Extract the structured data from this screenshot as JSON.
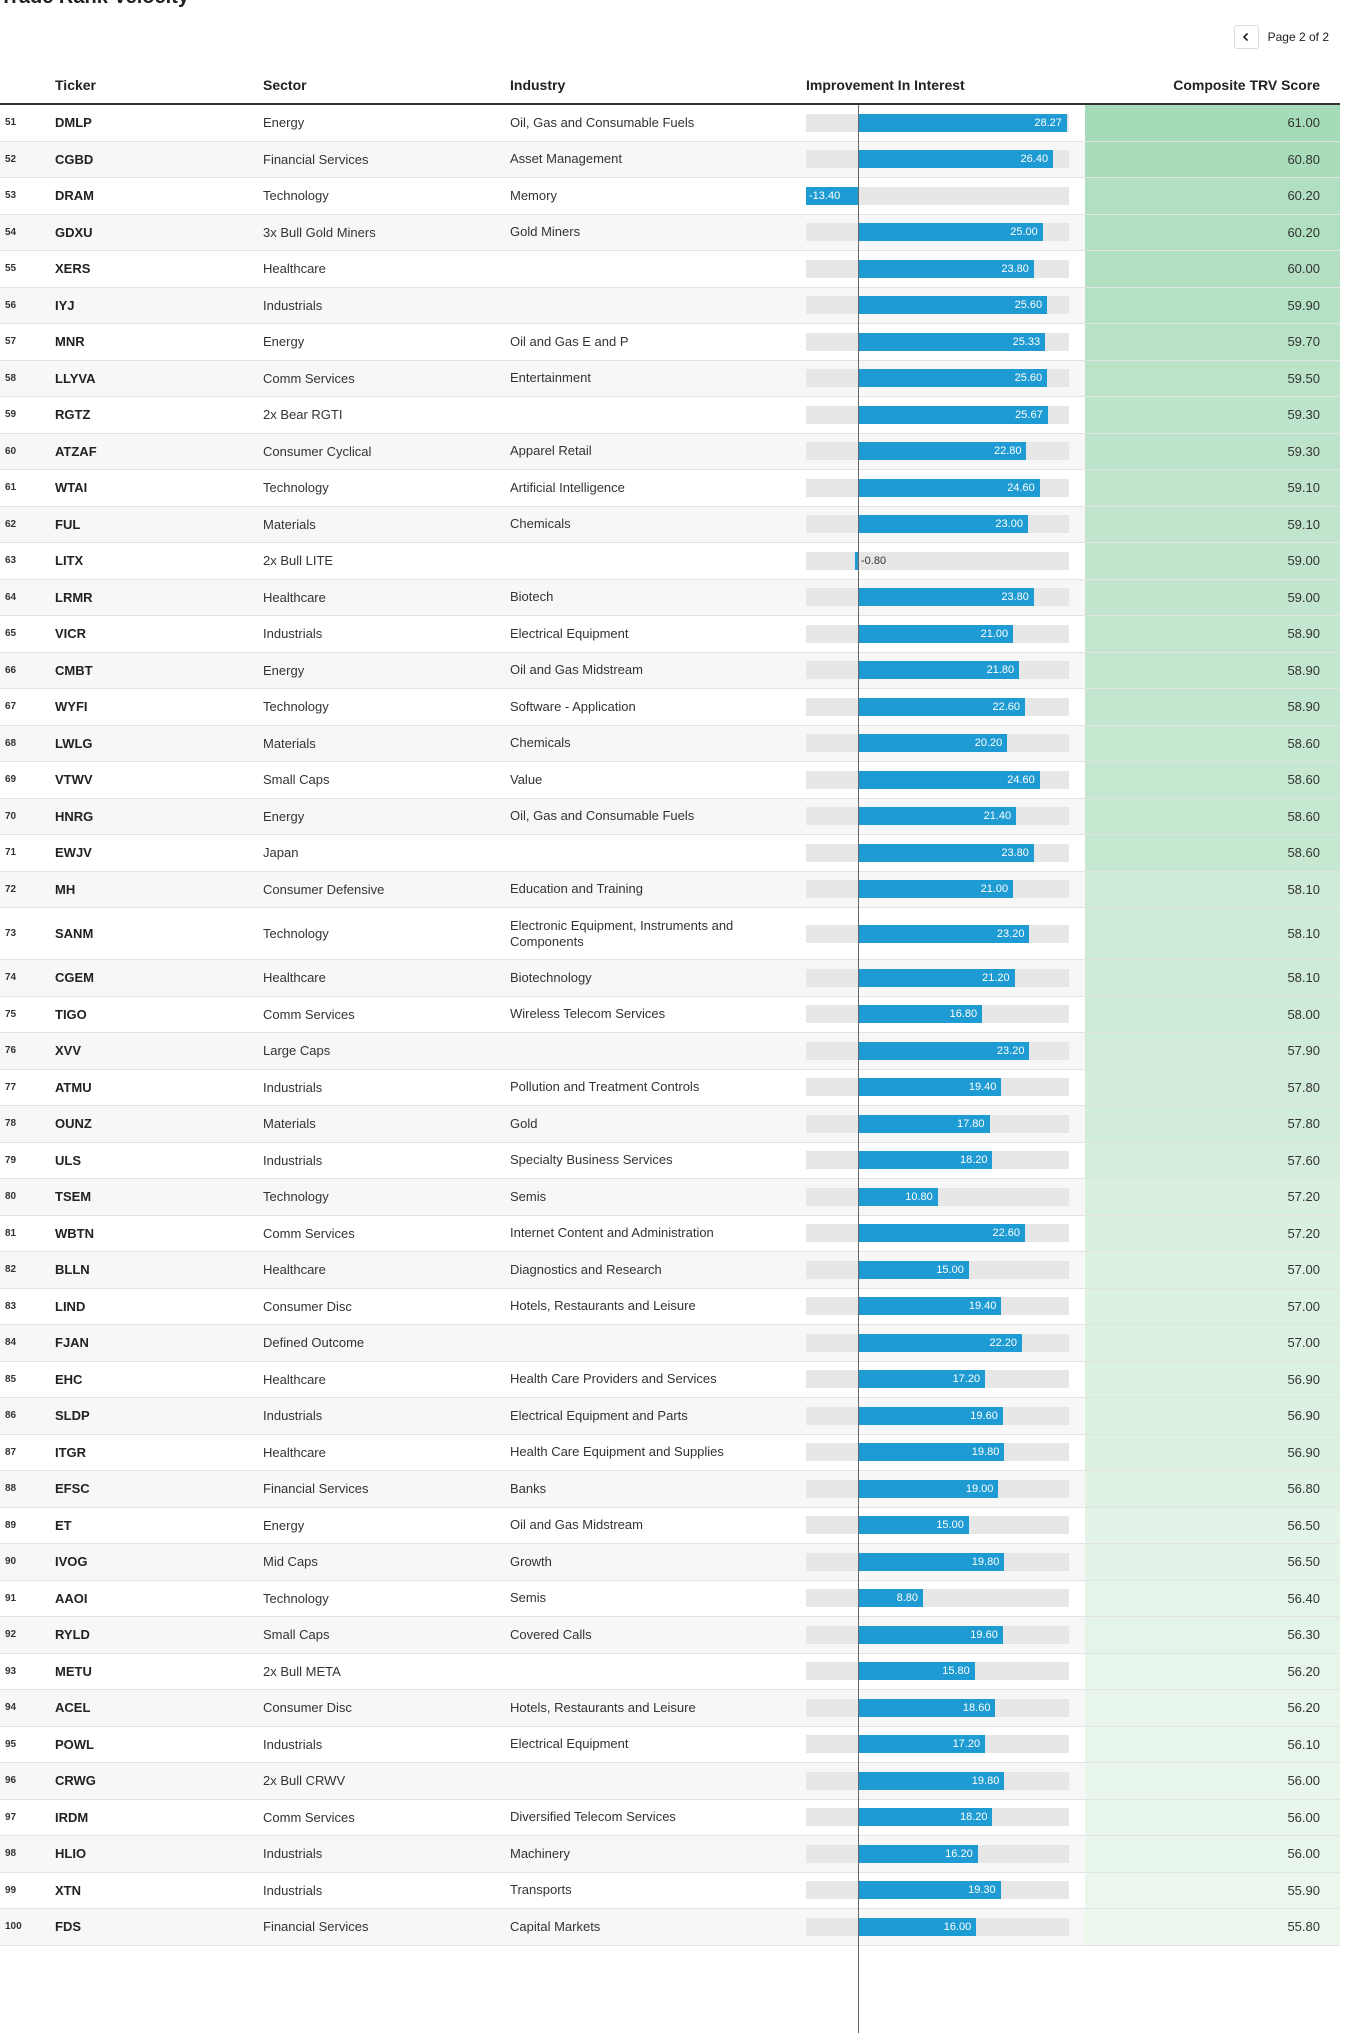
{
  "title": "Trade Rank Velocity",
  "pagination": {
    "label": "Page 2 of 2"
  },
  "columns": {
    "ticker": "Ticker",
    "sector": "Sector",
    "industry": "Industry",
    "improvement": "Improvement In Interest",
    "score": "Composite TRV Score"
  },
  "colors": {
    "bar": "#1e9bd2",
    "track": "#e7e7e7",
    "score_high": "#a6dbb9",
    "score_low": "#ecf7ee"
  },
  "improvement_range": [
    -13.4,
    28.27
  ],
  "rows": [
    {
      "rank": "51",
      "ticker": "DMLP",
      "sector": "Energy",
      "industry": "Oil, Gas and Consumable Fuels",
      "improvement": "28.27",
      "score": "61.00"
    },
    {
      "rank": "52",
      "ticker": "CGBD",
      "sector": "Financial Services",
      "industry": "Asset Management",
      "improvement": "26.40",
      "score": "60.80"
    },
    {
      "rank": "53",
      "ticker": "DRAM",
      "sector": "Technology",
      "industry": "Memory",
      "improvement": "-13.40",
      "score": "60.20"
    },
    {
      "rank": "54",
      "ticker": "GDXU",
      "sector": "3x Bull Gold Miners",
      "industry": "Gold Miners",
      "improvement": "25.00",
      "score": "60.20"
    },
    {
      "rank": "55",
      "ticker": "XERS",
      "sector": "Healthcare",
      "industry": "",
      "improvement": "23.80",
      "score": "60.00"
    },
    {
      "rank": "56",
      "ticker": "IYJ",
      "sector": "Industrials",
      "industry": "",
      "improvement": "25.60",
      "score": "59.90"
    },
    {
      "rank": "57",
      "ticker": "MNR",
      "sector": "Energy",
      "industry": "Oil and Gas E and P",
      "improvement": "25.33",
      "score": "59.70"
    },
    {
      "rank": "58",
      "ticker": "LLYVA",
      "sector": "Comm Services",
      "industry": "Entertainment",
      "improvement": "25.60",
      "score": "59.50"
    },
    {
      "rank": "59",
      "ticker": "RGTZ",
      "sector": "2x Bear RGTI",
      "industry": "",
      "improvement": "25.67",
      "score": "59.30"
    },
    {
      "rank": "60",
      "ticker": "ATZAF",
      "sector": "Consumer Cyclical",
      "industry": "Apparel Retail",
      "improvement": "22.80",
      "score": "59.30"
    },
    {
      "rank": "61",
      "ticker": "WTAI",
      "sector": "Technology",
      "industry": "Artificial Intelligence",
      "improvement": "24.60",
      "score": "59.10"
    },
    {
      "rank": "62",
      "ticker": "FUL",
      "sector": "Materials",
      "industry": "Chemicals",
      "improvement": "23.00",
      "score": "59.10"
    },
    {
      "rank": "63",
      "ticker": "LITX",
      "sector": "2x Bull LITE",
      "industry": "",
      "improvement": "-0.80",
      "score": "59.00"
    },
    {
      "rank": "64",
      "ticker": "LRMR",
      "sector": "Healthcare",
      "industry": "Biotech",
      "improvement": "23.80",
      "score": "59.00"
    },
    {
      "rank": "65",
      "ticker": "VICR",
      "sector": "Industrials",
      "industry": "Electrical Equipment",
      "improvement": "21.00",
      "score": "58.90"
    },
    {
      "rank": "66",
      "ticker": "CMBT",
      "sector": "Energy",
      "industry": "Oil and Gas Midstream",
      "improvement": "21.80",
      "score": "58.90"
    },
    {
      "rank": "67",
      "ticker": "WYFI",
      "sector": "Technology",
      "industry": "Software - Application",
      "improvement": "22.60",
      "score": "58.90"
    },
    {
      "rank": "68",
      "ticker": "LWLG",
      "sector": "Materials",
      "industry": "Chemicals",
      "improvement": "20.20",
      "score": "58.60"
    },
    {
      "rank": "69",
      "ticker": "VTWV",
      "sector": "Small Caps",
      "industry": "Value",
      "improvement": "24.60",
      "score": "58.60"
    },
    {
      "rank": "70",
      "ticker": "HNRG",
      "sector": "Energy",
      "industry": "Oil, Gas and Consumable Fuels",
      "improvement": "21.40",
      "score": "58.60"
    },
    {
      "rank": "71",
      "ticker": "EWJV",
      "sector": "Japan",
      "industry": "",
      "improvement": "23.80",
      "score": "58.60"
    },
    {
      "rank": "72",
      "ticker": "MH",
      "sector": "Consumer Defensive",
      "industry": "Education and Training",
      "improvement": "21.00",
      "score": "58.10"
    },
    {
      "rank": "73",
      "ticker": "SANM",
      "sector": "Technology",
      "industry": "Electronic Equipment, Instruments and Components",
      "improvement": "23.20",
      "score": "58.10",
      "tall": true
    },
    {
      "rank": "74",
      "ticker": "CGEM",
      "sector": "Healthcare",
      "industry": "Biotechnology",
      "improvement": "21.20",
      "score": "58.10"
    },
    {
      "rank": "75",
      "ticker": "TIGO",
      "sector": "Comm Services",
      "industry": "Wireless Telecom Services",
      "improvement": "16.80",
      "score": "58.00"
    },
    {
      "rank": "76",
      "ticker": "XVV",
      "sector": "Large Caps",
      "industry": "",
      "improvement": "23.20",
      "score": "57.90"
    },
    {
      "rank": "77",
      "ticker": "ATMU",
      "sector": "Industrials",
      "industry": "Pollution and Treatment Controls",
      "improvement": "19.40",
      "score": "57.80"
    },
    {
      "rank": "78",
      "ticker": "OUNZ",
      "sector": "Materials",
      "industry": "Gold",
      "improvement": "17.80",
      "score": "57.80"
    },
    {
      "rank": "79",
      "ticker": "ULS",
      "sector": "Industrials",
      "industry": "Specialty Business Services",
      "improvement": "18.20",
      "score": "57.60"
    },
    {
      "rank": "80",
      "ticker": "TSEM",
      "sector": "Technology",
      "industry": "Semis",
      "improvement": "10.80",
      "score": "57.20"
    },
    {
      "rank": "81",
      "ticker": "WBTN",
      "sector": "Comm Services",
      "industry": "Internet Content and Administration",
      "improvement": "22.60",
      "score": "57.20"
    },
    {
      "rank": "82",
      "ticker": "BLLN",
      "sector": "Healthcare",
      "industry": "Diagnostics and Research",
      "improvement": "15.00",
      "score": "57.00"
    },
    {
      "rank": "83",
      "ticker": "LIND",
      "sector": "Consumer Disc",
      "industry": "Hotels, Restaurants and Leisure",
      "improvement": "19.40",
      "score": "57.00"
    },
    {
      "rank": "84",
      "ticker": "FJAN",
      "sector": "Defined Outcome",
      "industry": "",
      "improvement": "22.20",
      "score": "57.00"
    },
    {
      "rank": "85",
      "ticker": "EHC",
      "sector": "Healthcare",
      "industry": "Health Care Providers and Services",
      "improvement": "17.20",
      "score": "56.90"
    },
    {
      "rank": "86",
      "ticker": "SLDP",
      "sector": "Industrials",
      "industry": "Electrical Equipment and Parts",
      "improvement": "19.60",
      "score": "56.90"
    },
    {
      "rank": "87",
      "ticker": "ITGR",
      "sector": "Healthcare",
      "industry": "Health Care Equipment and Supplies",
      "improvement": "19.80",
      "score": "56.90"
    },
    {
      "rank": "88",
      "ticker": "EFSC",
      "sector": "Financial Services",
      "industry": "Banks",
      "improvement": "19.00",
      "score": "56.80"
    },
    {
      "rank": "89",
      "ticker": "ET",
      "sector": "Energy",
      "industry": "Oil and Gas Midstream",
      "improvement": "15.00",
      "score": "56.50"
    },
    {
      "rank": "90",
      "ticker": "IVOG",
      "sector": "Mid Caps",
      "industry": "Growth",
      "improvement": "19.80",
      "score": "56.50"
    },
    {
      "rank": "91",
      "ticker": "AAOI",
      "sector": "Technology",
      "industry": "Semis",
      "improvement": "8.80",
      "score": "56.40"
    },
    {
      "rank": "92",
      "ticker": "RYLD",
      "sector": "Small Caps",
      "industry": "Covered Calls",
      "improvement": "19.60",
      "score": "56.30"
    },
    {
      "rank": "93",
      "ticker": "METU",
      "sector": "2x Bull META",
      "industry": "",
      "improvement": "15.80",
      "score": "56.20"
    },
    {
      "rank": "94",
      "ticker": "ACEL",
      "sector": "Consumer Disc",
      "industry": "Hotels, Restaurants and Leisure",
      "improvement": "18.60",
      "score": "56.20"
    },
    {
      "rank": "95",
      "ticker": "POWL",
      "sector": "Industrials",
      "industry": "Electrical Equipment",
      "improvement": "17.20",
      "score": "56.10"
    },
    {
      "rank": "96",
      "ticker": "CRWG",
      "sector": "2x Bull CRWV",
      "industry": "",
      "improvement": "19.80",
      "score": "56.00"
    },
    {
      "rank": "97",
      "ticker": "IRDM",
      "sector": "Comm Services",
      "industry": "Diversified Telecom Services",
      "improvement": "18.20",
      "score": "56.00"
    },
    {
      "rank": "98",
      "ticker": "HLIO",
      "sector": "Industrials",
      "industry": "Machinery",
      "improvement": "16.20",
      "score": "56.00"
    },
    {
      "rank": "99",
      "ticker": "XTN",
      "sector": "Industrials",
      "industry": "Transports",
      "improvement": "19.30",
      "score": "55.90"
    },
    {
      "rank": "100",
      "ticker": "FDS",
      "sector": "Financial Services",
      "industry": "Capital Markets",
      "improvement": "16.00",
      "score": "55.80"
    }
  ]
}
